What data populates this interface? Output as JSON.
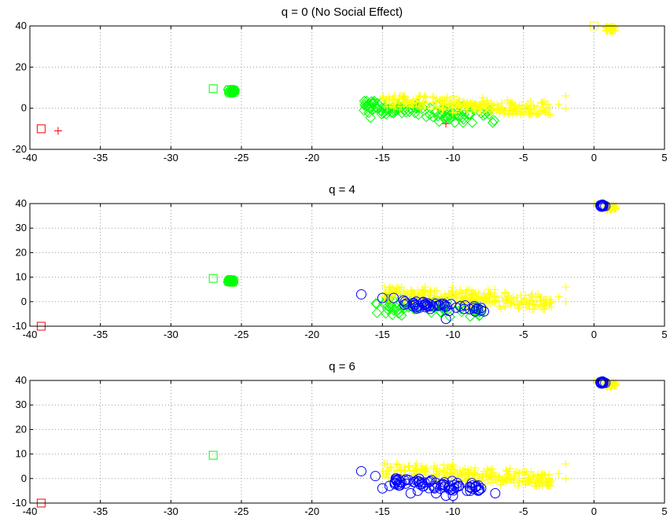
{
  "figure": {
    "background": "#ffffff"
  },
  "chart_data": [
    {
      "type": "scatter",
      "title": "q = 0 (No Social Effect)",
      "xlabel": "",
      "ylabel": "",
      "xlim": [
        -40,
        5
      ],
      "ylim": [
        -20,
        40
      ],
      "xticks": [
        "-40",
        "-35",
        "-30",
        "-25",
        "-20",
        "-15",
        "-10",
        "-5",
        "0",
        "5"
      ],
      "yticks": [
        "-20",
        "0",
        "20",
        "40"
      ],
      "grid": true,
      "groups": [
        {
          "marker": "square",
          "color": "#ff0000",
          "points": [
            [
              -39.2,
              -10
            ]
          ]
        },
        {
          "marker": "plus",
          "color": "#ff0000",
          "points": [
            [
              -38.0,
              -11
            ],
            [
              -10.5,
              -7.5
            ]
          ]
        },
        {
          "marker": "square",
          "color": "#00ff00",
          "points": [
            [
              -27.0,
              9.5
            ]
          ]
        },
        {
          "marker": "cluster-hexagon",
          "color": "#00ff00",
          "center": [
            -25.7,
            8.3
          ],
          "count": 30,
          "spread": [
            0.3,
            1.2
          ]
        },
        {
          "marker": "diamond",
          "color": "#00ff00",
          "cloud": {
            "count": 110,
            "x": [
              -16.5,
              -7
            ],
            "y": [
              -7,
              3.5
            ],
            "slope": -0.5,
            "seed": 11
          }
        },
        {
          "marker": "plus",
          "color": "#ffff00",
          "cloud": {
            "count": 260,
            "x": [
              -15,
              -3
            ],
            "y": [
              -3,
              6
            ],
            "slope": -0.45,
            "seed": 21
          }
        },
        {
          "marker": "plus",
          "color": "#ffff00",
          "points": [
            [
              -2.0,
              6
            ],
            [
              -2.0,
              0
            ],
            [
              -2.5,
              2
            ]
          ]
        },
        {
          "marker": "square",
          "color": "#ffff00",
          "points": [
            [
              0.0,
              40
            ]
          ]
        },
        {
          "marker": "plus",
          "color": "#ffff00",
          "cluster": {
            "center": [
              1.2,
              38.5
            ],
            "count": 40,
            "spread": [
              0.35,
              1.2
            ]
          }
        }
      ]
    },
    {
      "type": "scatter",
      "title": "q = 4",
      "xlabel": "",
      "ylabel": "",
      "xlim": [
        -40,
        5
      ],
      "ylim": [
        -10,
        40
      ],
      "xticks": [
        "-40",
        "-35",
        "-30",
        "-25",
        "-20",
        "-15",
        "-10",
        "-5",
        "0",
        "5"
      ],
      "yticks": [
        "-10",
        "0",
        "10",
        "20",
        "30",
        "40"
      ],
      "grid": true,
      "groups": [
        {
          "marker": "square",
          "color": "#ff0000",
          "points": [
            [
              -39.2,
              -10
            ]
          ]
        },
        {
          "marker": "square",
          "color": "#00ff00",
          "points": [
            [
              -27.0,
              9.5
            ]
          ]
        },
        {
          "marker": "cluster-hexagon",
          "color": "#00ff00",
          "center": [
            -25.7,
            8.4
          ],
          "count": 30,
          "spread": [
            0.3,
            0.9
          ]
        },
        {
          "marker": "diamond",
          "color": "#00ff00",
          "cloud": {
            "count": 70,
            "x": [
              -15.5,
              -8
            ],
            "y": [
              -7,
              2
            ],
            "slope": -0.4,
            "seed": 31
          }
        },
        {
          "marker": "plus",
          "color": "#ffff00",
          "cloud": {
            "count": 260,
            "x": [
              -15,
              -3
            ],
            "y": [
              -3,
              6
            ],
            "slope": -0.4,
            "seed": 41
          }
        },
        {
          "marker": "plus",
          "color": "#ffff00",
          "points": [
            [
              -2.0,
              6
            ],
            [
              -2.0,
              0
            ],
            [
              -2.5,
              2
            ]
          ]
        },
        {
          "marker": "circle",
          "color": "#0000ff",
          "points": [
            [
              -16.5,
              3
            ],
            [
              -15.0,
              1.5
            ],
            [
              -14.2,
              1.5
            ],
            [
              -13.5,
              0.5
            ],
            [
              -12.8,
              -0.5
            ],
            [
              -12.0,
              -1
            ],
            [
              -11.0,
              -1.5
            ],
            [
              -10.5,
              -7
            ],
            [
              -9.2,
              -3
            ],
            [
              -8.0,
              -3.5
            ],
            [
              -7.8,
              -4
            ]
          ]
        },
        {
          "marker": "circle",
          "color": "#0000ff",
          "cloud": {
            "count": 45,
            "x": [
              -13.5,
              -8
            ],
            "y": [
              -4,
              0
            ],
            "slope": -0.45,
            "seed": 51
          }
        },
        {
          "marker": "plus",
          "color": "#ffff00",
          "points": [
            [
              0.0,
              40
            ]
          ]
        },
        {
          "marker": "plus",
          "color": "#ffff00",
          "cluster": {
            "center": [
              1.2,
              38.3
            ],
            "count": 30,
            "spread": [
              0.4,
              0.9
            ]
          }
        },
        {
          "marker": "circle",
          "color": "#0000ff",
          "cluster": {
            "center": [
              0.6,
              39.2
            ],
            "count": 12,
            "spread": [
              0.15,
              0.5
            ]
          }
        },
        {
          "marker": "circle",
          "color": "#0000ff",
          "points": [
            [
              0.8,
              39
            ]
          ]
        }
      ]
    },
    {
      "type": "scatter",
      "title": "q = 6",
      "xlabel": "",
      "ylabel": "",
      "xlim": [
        -40,
        5
      ],
      "ylim": [
        -10,
        40
      ],
      "xticks": [
        "-40",
        "-35",
        "-30",
        "-25",
        "-20",
        "-15",
        "-10",
        "-5",
        "0",
        "5"
      ],
      "yticks": [
        "-10",
        "0",
        "10",
        "20",
        "30",
        "40"
      ],
      "grid": true,
      "groups": [
        {
          "marker": "square",
          "color": "#ff0000",
          "points": [
            [
              -39.2,
              -10
            ]
          ]
        },
        {
          "marker": "square",
          "color": "#00ff00",
          "points": [
            [
              -27.0,
              9.5
            ]
          ]
        },
        {
          "marker": "plus",
          "color": "#ffff00",
          "cloud": {
            "count": 260,
            "x": [
              -15,
              -3
            ],
            "y": [
              -3,
              6
            ],
            "slope": -0.4,
            "seed": 61
          }
        },
        {
          "marker": "plus",
          "color": "#ffff00",
          "points": [
            [
              -2.0,
              6
            ],
            [
              -2.0,
              0
            ],
            [
              -2.5,
              2
            ]
          ]
        },
        {
          "marker": "circle",
          "color": "#0000ff",
          "points": [
            [
              -16.5,
              3
            ],
            [
              -15.5,
              1
            ],
            [
              -15.0,
              -4
            ],
            [
              -14.5,
              -3
            ],
            [
              -14.0,
              -1
            ],
            [
              -13.0,
              -6
            ],
            [
              -12.5,
              -5
            ],
            [
              -11.2,
              -6
            ],
            [
              -10.5,
              -7
            ],
            [
              -10.0,
              -7
            ],
            [
              -9.0,
              -5
            ],
            [
              -8.0,
              -4
            ],
            [
              -7.0,
              -6
            ]
          ]
        },
        {
          "marker": "circle",
          "color": "#0000ff",
          "cloud": {
            "count": 70,
            "x": [
              -14.5,
              -8
            ],
            "y": [
              -5,
              0
            ],
            "slope": -0.45,
            "seed": 71
          }
        },
        {
          "marker": "plus",
          "color": "#ffff00",
          "points": [
            [
              0.0,
              40
            ]
          ]
        },
        {
          "marker": "plus",
          "color": "#ffff00",
          "cluster": {
            "center": [
              1.2,
              38.3
            ],
            "count": 30,
            "spread": [
              0.4,
              0.9
            ]
          }
        },
        {
          "marker": "circle",
          "color": "#0000ff",
          "cluster": {
            "center": [
              0.6,
              39.2
            ],
            "count": 12,
            "spread": [
              0.15,
              0.5
            ]
          }
        },
        {
          "marker": "circle",
          "color": "#0000ff",
          "points": [
            [
              0.8,
              39
            ]
          ]
        }
      ]
    }
  ]
}
